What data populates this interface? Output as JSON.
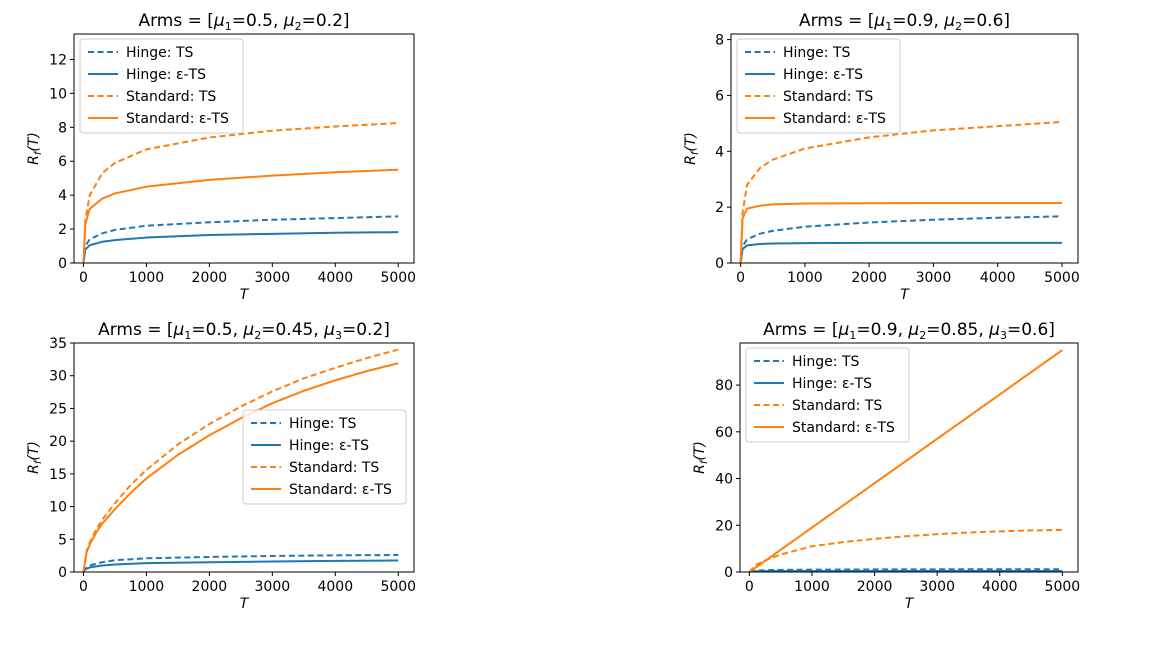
{
  "colors": {
    "hinge": "#1f77b4",
    "standard": "#ff7f0e",
    "axis": "#000000",
    "legend_border": "#cccccc"
  },
  "legend_labels": [
    "Hinge: TS",
    "Hinge: ε-TS",
    "Standard: TS",
    "Standard: ε-TS"
  ],
  "chart_data": [
    {
      "type": "line",
      "title": {
        "pre": "Arms = [",
        "parts": [
          {
            "sym": "μ",
            "sub": "1",
            "text": "=0.5, "
          },
          {
            "sym": "μ",
            "sub": "2",
            "text": "=0.2]"
          }
        ]
      },
      "xlabel": "T",
      "ylabel": "R_f(T)",
      "xlim": [
        -150,
        5250
      ],
      "ylim": [
        0,
        13.5
      ],
      "xticks": [
        0,
        1000,
        2000,
        3000,
        4000,
        5000
      ],
      "yticks": [
        0,
        2,
        4,
        6,
        8,
        10,
        12
      ],
      "legend_position": "top-left",
      "series": [
        {
          "name": "Hinge: TS",
          "style": "dashed",
          "color": "#1f77b4",
          "x": [
            0,
            30,
            100,
            300,
            500,
            1000,
            2000,
            3000,
            4000,
            5000
          ],
          "y": [
            0,
            1.0,
            1.4,
            1.75,
            1.95,
            2.2,
            2.4,
            2.55,
            2.65,
            2.75
          ]
        },
        {
          "name": "Hinge: ε-TS",
          "style": "solid",
          "color": "#1f77b4",
          "x": [
            0,
            30,
            100,
            300,
            500,
            1000,
            2000,
            3000,
            4000,
            5000
          ],
          "y": [
            0,
            0.8,
            1.05,
            1.25,
            1.35,
            1.5,
            1.65,
            1.72,
            1.78,
            1.82
          ]
        },
        {
          "name": "Standard: TS",
          "style": "dashed",
          "color": "#ff7f0e",
          "x": [
            0,
            30,
            100,
            300,
            500,
            1000,
            2000,
            3000,
            4000,
            5000
          ],
          "y": [
            0,
            2.5,
            4.0,
            5.3,
            5.9,
            6.7,
            7.4,
            7.8,
            8.05,
            8.25
          ]
        },
        {
          "name": "Standard: ε-TS",
          "style": "solid",
          "color": "#ff7f0e",
          "x": [
            0,
            30,
            100,
            300,
            500,
            1000,
            2000,
            3000,
            4000,
            5000
          ],
          "y": [
            0,
            2.3,
            3.2,
            3.8,
            4.1,
            4.5,
            4.9,
            5.15,
            5.35,
            5.5
          ]
        }
      ]
    },
    {
      "type": "line",
      "title": {
        "pre": "Arms = [",
        "parts": [
          {
            "sym": "μ",
            "sub": "1",
            "text": "=0.9, "
          },
          {
            "sym": "μ",
            "sub": "2",
            "text": "=0.6]"
          }
        ]
      },
      "xlabel": "T",
      "ylabel": "R_f(T)",
      "xlim": [
        -150,
        5250
      ],
      "ylim": [
        0,
        8.2
      ],
      "xticks": [
        0,
        1000,
        2000,
        3000,
        4000,
        5000
      ],
      "yticks": [
        0,
        2,
        4,
        6,
        8
      ],
      "legend_position": "top-left",
      "series": [
        {
          "name": "Hinge: TS",
          "style": "dashed",
          "color": "#1f77b4",
          "x": [
            0,
            30,
            100,
            300,
            500,
            1000,
            2000,
            3000,
            4000,
            5000
          ],
          "y": [
            0,
            0.6,
            0.85,
            1.05,
            1.15,
            1.3,
            1.45,
            1.55,
            1.62,
            1.67
          ]
        },
        {
          "name": "Hinge: ε-TS",
          "style": "solid",
          "color": "#1f77b4",
          "x": [
            0,
            30,
            100,
            300,
            500,
            1000,
            2000,
            3000,
            4000,
            5000
          ],
          "y": [
            0,
            0.5,
            0.63,
            0.68,
            0.7,
            0.71,
            0.72,
            0.72,
            0.72,
            0.72
          ]
        },
        {
          "name": "Standard: TS",
          "style": "dashed",
          "color": "#ff7f0e",
          "x": [
            0,
            30,
            100,
            300,
            500,
            1000,
            2000,
            3000,
            4000,
            5000
          ],
          "y": [
            0,
            1.8,
            2.8,
            3.4,
            3.7,
            4.1,
            4.5,
            4.75,
            4.9,
            5.05
          ]
        },
        {
          "name": "Standard: ε-TS",
          "style": "solid",
          "color": "#ff7f0e",
          "x": [
            0,
            30,
            100,
            300,
            500,
            1000,
            2000,
            3000,
            4000,
            5000
          ],
          "y": [
            0,
            1.6,
            1.95,
            2.05,
            2.1,
            2.13,
            2.14,
            2.15,
            2.15,
            2.15
          ]
        }
      ]
    },
    {
      "type": "line",
      "title": {
        "pre": "Arms = [",
        "parts": [
          {
            "sym": "μ",
            "sub": "1",
            "text": "=0.5, "
          },
          {
            "sym": "μ",
            "sub": "2",
            "text": "=0.45, "
          },
          {
            "sym": "μ",
            "sub": "3",
            "text": "=0.2]"
          }
        ]
      },
      "xlabel": "T",
      "ylabel": "R_f(T)",
      "xlim": [
        -150,
        5250
      ],
      "ylim": [
        0,
        35
      ],
      "xticks": [
        0,
        1000,
        2000,
        3000,
        4000,
        5000
      ],
      "yticks": [
        0,
        5,
        10,
        15,
        20,
        25,
        30,
        35
      ],
      "legend_position": "center-right",
      "series": [
        {
          "name": "Hinge: TS",
          "style": "dashed",
          "color": "#1f77b4",
          "x": [
            0,
            30,
            100,
            300,
            500,
            1000,
            2000,
            3000,
            4000,
            5000
          ],
          "y": [
            0,
            0.5,
            1.0,
            1.5,
            1.8,
            2.1,
            2.3,
            2.45,
            2.55,
            2.6
          ]
        },
        {
          "name": "Hinge: ε-TS",
          "style": "solid",
          "color": "#1f77b4",
          "x": [
            0,
            30,
            100,
            300,
            500,
            1000,
            2000,
            3000,
            4000,
            5000
          ],
          "y": [
            0,
            0.4,
            0.7,
            1.0,
            1.15,
            1.35,
            1.5,
            1.6,
            1.7,
            1.75
          ]
        },
        {
          "name": "Standard: TS",
          "style": "dashed",
          "color": "#ff7f0e",
          "x": [
            0,
            50,
            100,
            200,
            300,
            500,
            750,
            1000,
            1500,
            2000,
            2500,
            3000,
            3500,
            4000,
            4500,
            5000
          ],
          "y": [
            0,
            3.2,
            4.5,
            6.5,
            8.0,
            10.5,
            13.3,
            15.6,
            19.5,
            22.6,
            25.3,
            27.6,
            29.6,
            31.2,
            32.7,
            34.0
          ]
        },
        {
          "name": "Standard: ε-TS",
          "style": "solid",
          "color": "#ff7f0e",
          "x": [
            0,
            50,
            100,
            200,
            300,
            500,
            750,
            1000,
            1500,
            2000,
            2500,
            3000,
            3500,
            4000,
            4500,
            5000
          ],
          "y": [
            0,
            3.0,
            4.2,
            6.0,
            7.4,
            9.6,
            12.1,
            14.3,
            17.9,
            20.9,
            23.5,
            25.8,
            27.7,
            29.3,
            30.7,
            31.9
          ]
        }
      ]
    },
    {
      "type": "line",
      "title": {
        "pre": "Arms = [",
        "parts": [
          {
            "sym": "μ",
            "sub": "1",
            "text": "=0.9, "
          },
          {
            "sym": "μ",
            "sub": "2",
            "text": "=0.85, "
          },
          {
            "sym": "μ",
            "sub": "3",
            "text": "=0.6]"
          }
        ]
      },
      "xlabel": "T",
      "ylabel": "R_f(T)",
      "xlim": [
        -150,
        5250
      ],
      "ylim": [
        0,
        98
      ],
      "xticks": [
        0,
        1000,
        2000,
        3000,
        4000,
        5000
      ],
      "yticks": [
        0,
        20,
        40,
        60,
        80
      ],
      "legend_position": "top-left",
      "series": [
        {
          "name": "Hinge: TS",
          "style": "dashed",
          "color": "#1f77b4",
          "x": [
            0,
            30,
            100,
            300,
            500,
            1000,
            2000,
            3000,
            4000,
            5000
          ],
          "y": [
            0,
            0.4,
            0.6,
            0.8,
            0.9,
            1.0,
            1.1,
            1.15,
            1.2,
            1.2
          ]
        },
        {
          "name": "Hinge: ε-TS",
          "style": "solid",
          "color": "#1f77b4",
          "x": [
            0,
            30,
            100,
            300,
            500,
            1000,
            2000,
            3000,
            4000,
            5000
          ],
          "y": [
            0,
            0.2,
            0.3,
            0.35,
            0.4,
            0.4,
            0.45,
            0.45,
            0.45,
            0.45
          ]
        },
        {
          "name": "Standard: TS",
          "style": "dashed",
          "color": "#ff7f0e",
          "x": [
            0,
            50,
            100,
            300,
            500,
            1000,
            1500,
            2000,
            2500,
            3000,
            3500,
            4000,
            4500,
            5000
          ],
          "y": [
            0,
            1.5,
            3.0,
            5.5,
            7.5,
            11.0,
            12.8,
            14.2,
            15.3,
            16.2,
            16.9,
            17.4,
            17.8,
            18.0
          ]
        },
        {
          "name": "Standard: ε-TS",
          "style": "solid",
          "color": "#ff7f0e",
          "x": [
            0,
            50,
            100,
            300,
            500,
            1000,
            2000,
            3000,
            4000,
            5000
          ],
          "y": [
            0,
            0.95,
            1.9,
            5.7,
            9.5,
            19.0,
            38.0,
            57.0,
            76.0,
            95.0
          ]
        }
      ]
    }
  ]
}
